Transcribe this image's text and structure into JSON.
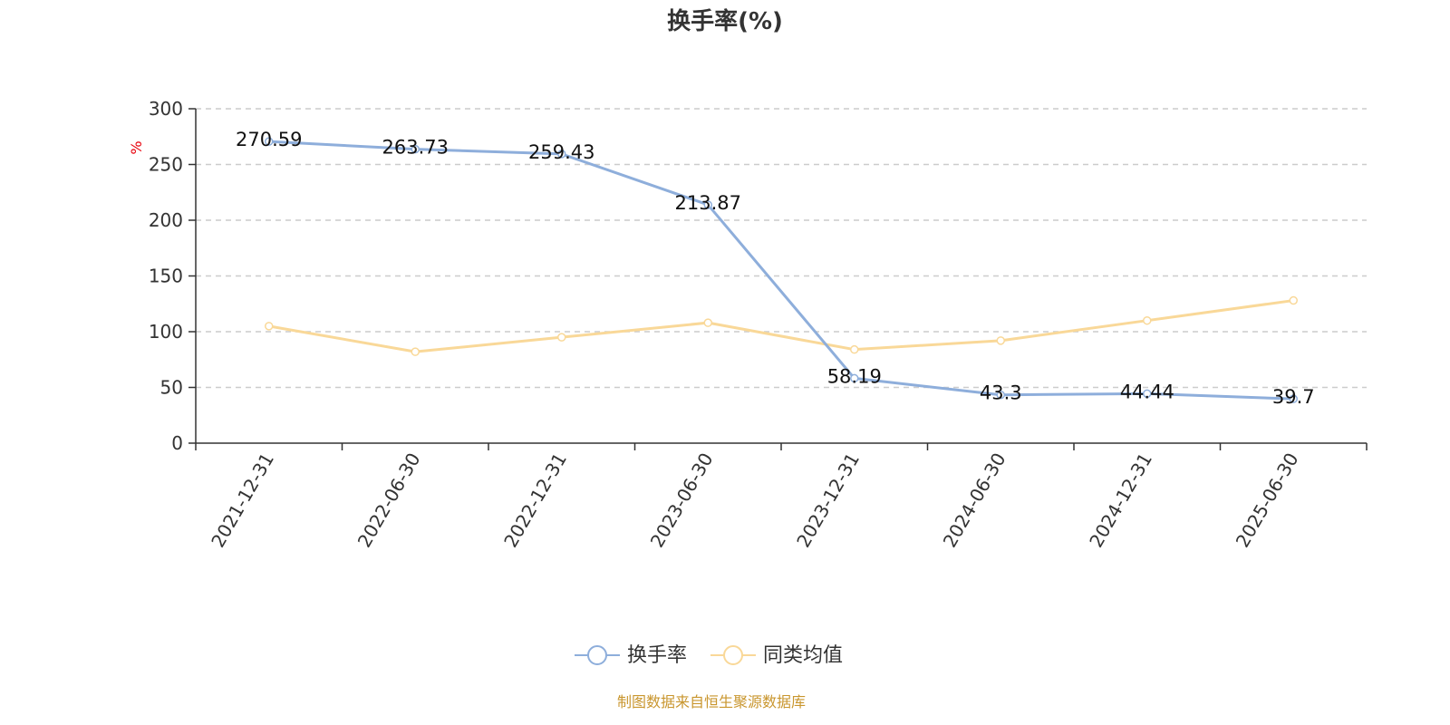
{
  "colors": {
    "series_turnover": "#8eaedb",
    "series_peer_avg": "#f9d898",
    "axis": "#333333",
    "grid": "#cccccc",
    "unit": "#e8000b",
    "source": "#c9962e"
  },
  "chart_data": {
    "type": "line",
    "title": "换手率(%)",
    "ylabel": "%",
    "xlabel": "",
    "ylim": [
      0,
      300
    ],
    "yticks": [
      "0",
      "50",
      "100",
      "150",
      "200",
      "250",
      "300"
    ],
    "grid": true,
    "legend_position": "bottom",
    "categories": [
      "2021-12-31",
      "2022-06-30",
      "2022-12-31",
      "2023-06-30",
      "2023-12-31",
      "2024-06-30",
      "2024-12-31",
      "2025-06-30"
    ],
    "series": [
      {
        "name": "换手率",
        "values": [
          270.59,
          263.73,
          259.43,
          213.87,
          58.19,
          43.3,
          44.44,
          39.7
        ],
        "labels": [
          "270.59",
          "263.73",
          "259.43",
          "213.87",
          "58.19",
          "43.3",
          "44.44",
          "39.7"
        ]
      },
      {
        "name": "同类均值",
        "values": [
          105,
          82,
          95,
          108,
          84,
          92,
          110,
          128
        ]
      }
    ]
  },
  "footer": {
    "source": "制图数据来自恒生聚源数据库"
  }
}
